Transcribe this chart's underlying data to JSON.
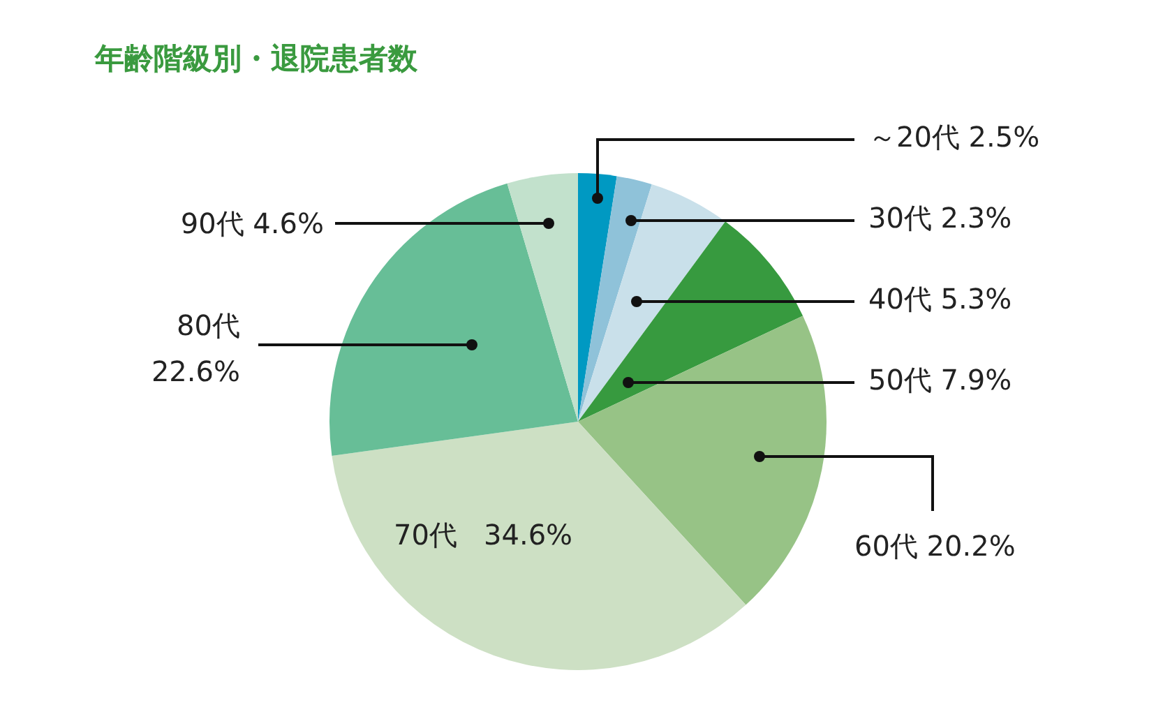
{
  "chart_data": {
    "type": "pie",
    "title": "年齢階級別・退院患者数",
    "categories": [
      "～20代",
      "30代",
      "40代",
      "50代",
      "60代",
      "70代",
      "80代",
      "90代"
    ],
    "values": [
      2.5,
      2.3,
      5.3,
      7.9,
      20.2,
      34.6,
      22.6,
      4.6
    ],
    "value_labels": [
      "2.5%",
      "2.3%",
      "5.3%",
      "7.9%",
      "20.2%",
      "34.6%",
      "22.6%",
      "4.6%"
    ],
    "colors": [
      "#0099c2",
      "#8fc2d9",
      "#c9e0ea",
      "#379a3f",
      "#97c386",
      "#cde0c4",
      "#67be97",
      "#c2e1cc"
    ],
    "legend": false
  }
}
